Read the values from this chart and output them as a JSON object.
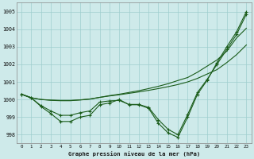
{
  "title": "Graphe pression niveau de la mer (hPa)",
  "background_color": "#ceeaea",
  "grid_color": "#9ecece",
  "line_color": "#1a5c1a",
  "x_labels": [
    "0",
    "1",
    "2",
    "3",
    "4",
    "5",
    "6",
    "7",
    "8",
    "9",
    "10",
    "11",
    "12",
    "13",
    "14",
    "15",
    "16",
    "17",
    "18",
    "19",
    "20",
    "21",
    "22",
    "23"
  ],
  "ylim": [
    997.5,
    1005.5
  ],
  "yticks": [
    998,
    999,
    1000,
    1001,
    1002,
    1003,
    1004,
    1005
  ],
  "s1_y": [
    1000.3,
    1000.1,
    999.6,
    999.2,
    998.75,
    998.75,
    999.0,
    999.1,
    999.7,
    999.8,
    1000.0,
    999.7,
    999.7,
    999.5,
    998.65,
    998.1,
    997.85,
    999.0,
    1000.3,
    1001.1,
    1002.1,
    1003.0,
    1003.85,
    1005.0
  ],
  "s2_y": [
    1000.3,
    1000.08,
    999.65,
    999.35,
    999.1,
    999.1,
    999.25,
    999.35,
    999.85,
    999.92,
    999.95,
    999.72,
    999.72,
    999.55,
    998.85,
    998.3,
    998.0,
    999.15,
    1000.4,
    1001.15,
    1002.0,
    1002.85,
    1003.7,
    1004.85
  ],
  "s3_y": [
    1000.3,
    1000.1,
    1000.0,
    999.95,
    999.93,
    999.93,
    999.97,
    1000.02,
    1000.12,
    1000.22,
    1000.3,
    1000.4,
    1000.5,
    1000.62,
    1000.75,
    1000.9,
    1001.08,
    1001.25,
    1001.55,
    1001.9,
    1002.25,
    1002.75,
    1003.5,
    1004.05
  ],
  "s4_y": [
    1000.3,
    1000.1,
    1000.0,
    999.97,
    999.95,
    999.95,
    999.98,
    1000.03,
    1000.12,
    1000.2,
    1000.27,
    1000.35,
    1000.43,
    1000.52,
    1000.62,
    1000.73,
    1000.85,
    1001.0,
    1001.2,
    1001.45,
    1001.7,
    1002.1,
    1002.55,
    1003.1
  ]
}
